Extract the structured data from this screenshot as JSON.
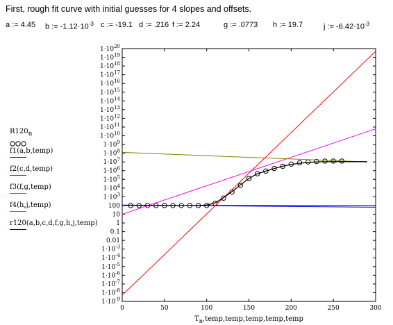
{
  "heading": "First, rough fit curve with initial guesses for 4 slopes and offsets.",
  "params": [
    {
      "name": "a",
      "op": ":=",
      "value": "4.45",
      "exp": ""
    },
    {
      "name": "b",
      "op": ":=",
      "value": "-1.12·10",
      "exp": "-3"
    },
    {
      "name": "c",
      "op": ":=",
      "value": "-19.1",
      "exp": ""
    },
    {
      "name": "d",
      "op": ":=",
      "value": ".216",
      "exp": ""
    },
    {
      "name": "f",
      "op": ":=",
      "value": "2.24",
      "exp": ""
    },
    {
      "name": "g",
      "op": ":=",
      "value": ".0773",
      "exp": ""
    },
    {
      "name": "h",
      "op": ":=",
      "value": "19.7",
      "exp": ""
    },
    {
      "name": "j",
      "op": ":=",
      "value": "-6.42·10",
      "exp": "-3"
    }
  ],
  "legend": {
    "data_label": "R120",
    "data_sub": "n",
    "items": [
      {
        "label": "f1(a,b,temp)",
        "color": "#0000ff"
      },
      {
        "label": "f2(c,d,temp)",
        "color": "#ff0000"
      },
      {
        "label": "f3(f,g,temp)",
        "color": "#ff00ff"
      },
      {
        "label": "f4(h,j,temp)",
        "color": "#808000"
      },
      {
        "label": "r120(a,b,c,d,f,g,h,j,temp)",
        "color": "#000080"
      }
    ]
  },
  "chart_data": {
    "type": "line",
    "xlabel": "T",
    "xlabel_sub": "n",
    "xlabel_rest": ",temp,temp,temp,temp,temp",
    "xlim": [
      0,
      300
    ],
    "x_ticks": [
      0,
      50,
      100,
      150,
      200,
      250,
      300
    ],
    "y_scale": "log10",
    "ylim_exp": [
      -9,
      20
    ],
    "y_tick_labels": [
      {
        "exp": 20,
        "text": "1·10",
        "sup": "20"
      },
      {
        "exp": 19,
        "text": "1·10",
        "sup": "19"
      },
      {
        "exp": 18,
        "text": "1·10",
        "sup": "18"
      },
      {
        "exp": 17,
        "text": "1·10",
        "sup": "17"
      },
      {
        "exp": 16,
        "text": "1·10",
        "sup": "16"
      },
      {
        "exp": 15,
        "text": "1·10",
        "sup": "15"
      },
      {
        "exp": 14,
        "text": "1·10",
        "sup": "14"
      },
      {
        "exp": 13,
        "text": "1·10",
        "sup": "13"
      },
      {
        "exp": 12,
        "text": "1·10",
        "sup": "12"
      },
      {
        "exp": 11,
        "text": "1·10",
        "sup": "11"
      },
      {
        "exp": 10,
        "text": "1·10",
        "sup": "10"
      },
      {
        "exp": 9,
        "text": "1·10",
        "sup": "9"
      },
      {
        "exp": 8,
        "text": "1·10",
        "sup": "8"
      },
      {
        "exp": 7,
        "text": "1·10",
        "sup": "7"
      },
      {
        "exp": 6,
        "text": "1·10",
        "sup": "6"
      },
      {
        "exp": 5,
        "text": "1·10",
        "sup": "5"
      },
      {
        "exp": 4,
        "text": "1·10",
        "sup": "4"
      },
      {
        "exp": 3,
        "text": "1·10",
        "sup": "3"
      },
      {
        "exp": 2,
        "text": "100",
        "sup": ""
      },
      {
        "exp": 1,
        "text": "10",
        "sup": ""
      },
      {
        "exp": 0,
        "text": "1",
        "sup": ""
      },
      {
        "exp": -1,
        "text": "0.1",
        "sup": ""
      },
      {
        "exp": -2,
        "text": "0.01",
        "sup": ""
      },
      {
        "exp": -3,
        "text": "1·10",
        "sup": "-3"
      },
      {
        "exp": -4,
        "text": "1·10",
        "sup": "-4"
      },
      {
        "exp": -5,
        "text": "1·10",
        "sup": "-5"
      },
      {
        "exp": -6,
        "text": "1·10",
        "sup": "-6"
      },
      {
        "exp": -7,
        "text": "1·10",
        "sup": "-7"
      },
      {
        "exp": -8,
        "text": "1·10",
        "sup": "-8"
      },
      {
        "exp": -9,
        "text": "1·10",
        "sup": "-9"
      }
    ],
    "series": [
      {
        "name": "R120",
        "style": "circles",
        "color": "#000000",
        "x": [
          10,
          20,
          30,
          40,
          50,
          60,
          70,
          80,
          90,
          100,
          110,
          120,
          130,
          140,
          150,
          160,
          170,
          180,
          190,
          200,
          210,
          220,
          230,
          240,
          250,
          260
        ],
        "y_log10": [
          2.0,
          2.0,
          2.0,
          2.0,
          2.0,
          2.0,
          2.0,
          2.0,
          2.0,
          2.0,
          2.25,
          2.85,
          3.55,
          4.3,
          5.1,
          5.65,
          5.95,
          6.25,
          6.5,
          6.75,
          6.9,
          7.0,
          7.05,
          7.1,
          7.1,
          7.1
        ]
      },
      {
        "name": "f1(a,b,temp)",
        "style": "line",
        "color": "#0000ff",
        "x": [
          0,
          300
        ],
        "y_log10": [
          2.06,
          1.8
        ]
      },
      {
        "name": "f2(c,d,temp)",
        "style": "line",
        "color": "#ff0000",
        "x": [
          0,
          300
        ],
        "y_log10": [
          -8.3,
          19.7
        ]
      },
      {
        "name": "f3(f,g,temp)",
        "style": "line",
        "color": "#ff00ff",
        "x": [
          0,
          300
        ],
        "y_log10": [
          1.0,
          10.8
        ]
      },
      {
        "name": "f4(h,j,temp)",
        "style": "line",
        "color": "#808000",
        "x": [
          0,
          290
        ],
        "y_log10": [
          8.1,
          7.0
        ]
      },
      {
        "name": "r120(a,b,c,d,f,g,h,j,temp)",
        "style": "line",
        "color": "#000000",
        "x": [
          0,
          90,
          100,
          110,
          120,
          130,
          140,
          150,
          160,
          170,
          180,
          190,
          200,
          210,
          220,
          230,
          240,
          250,
          260,
          270,
          280,
          290
        ],
        "y_log10": [
          2.0,
          2.0,
          2.05,
          2.3,
          2.9,
          3.6,
          4.35,
          5.1,
          5.65,
          5.95,
          6.25,
          6.5,
          6.7,
          6.85,
          6.95,
          7.0,
          7.02,
          7.03,
          7.03,
          7.03,
          7.03,
          7.03
        ]
      }
    ]
  }
}
